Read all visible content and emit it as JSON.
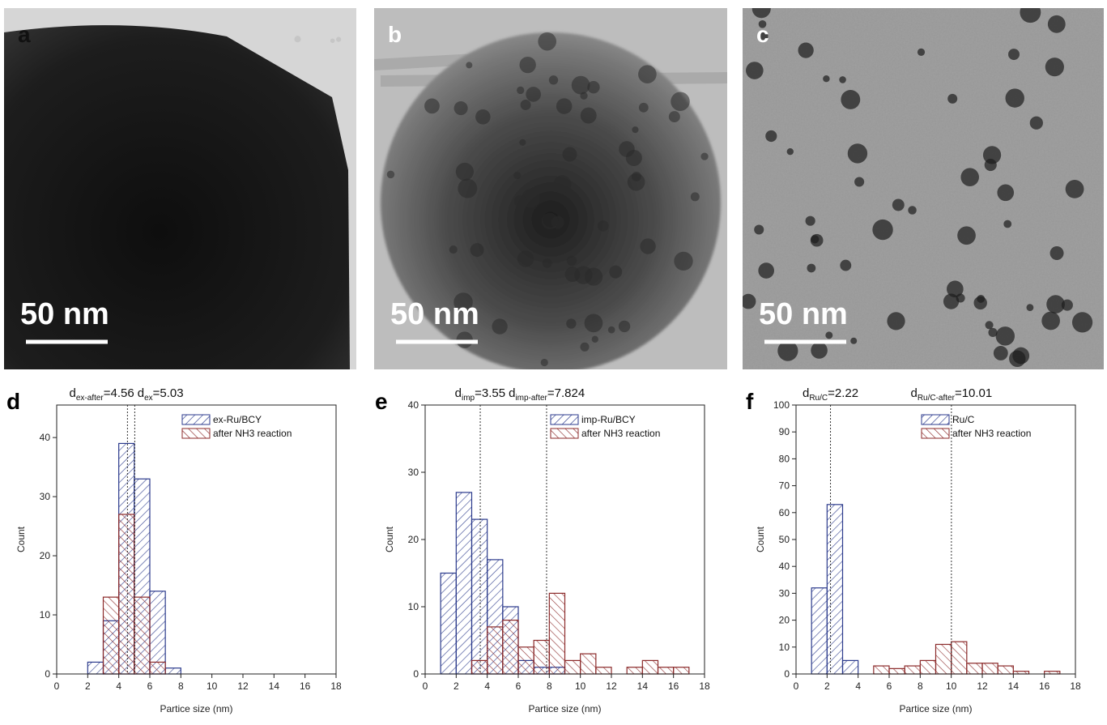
{
  "images": [
    {
      "label": "a",
      "scale_bar": "50 nm"
    },
    {
      "label": "b",
      "scale_bar": "50 nm"
    },
    {
      "label": "c",
      "scale_bar": "50 nm"
    }
  ],
  "chart_data": [
    {
      "type": "histogram",
      "label": "d",
      "xlabel": "Partice size (nm)",
      "ylabel": "Count",
      "bins": [
        2,
        3,
        4,
        5,
        6,
        7,
        8
      ],
      "series": [
        {
          "name": "ex-Ru/BCY",
          "color": "#2b3a8c",
          "values": [
            2,
            9,
            39,
            33,
            14,
            1
          ]
        },
        {
          "name": "after NH3 reaction",
          "color": "#8b2a2a",
          "values": [
            0,
            13,
            27,
            13,
            2,
            0
          ]
        }
      ],
      "annotations": [
        {
          "symbol": "d",
          "subscript": "ex-after",
          "label": "=4.56",
          "x": 4.56
        },
        {
          "symbol": "d",
          "subscript": "ex",
          "label": "=5.03",
          "x": 5.03
        }
      ],
      "xlim": [
        0,
        18
      ],
      "xticks": [
        0,
        2,
        4,
        6,
        8,
        10,
        12,
        14,
        16,
        18
      ],
      "ylim": [
        0,
        45.5
      ],
      "yticks": [
        0,
        10,
        20,
        30,
        40
      ],
      "legend": "upper right"
    },
    {
      "type": "histogram",
      "label": "e",
      "xlabel": "Partice size (nm)",
      "ylabel": "Count",
      "bins": [
        1,
        2,
        3,
        4,
        5,
        6,
        7,
        8,
        9,
        10,
        11,
        12,
        13,
        14,
        15,
        16,
        17
      ],
      "series": [
        {
          "name": "imp-Ru/BCY",
          "color": "#2b3a8c",
          "values": [
            15,
            27,
            23,
            17,
            10,
            2,
            1,
            1,
            0,
            0,
            0,
            0,
            0,
            0,
            0,
            0
          ]
        },
        {
          "name": "after NH3 reaction",
          "color": "#8b2a2a",
          "values": [
            0,
            0,
            2,
            7,
            8,
            4,
            5,
            12,
            2,
            3,
            1,
            0,
            1,
            2,
            1,
            1
          ]
        }
      ],
      "annotations": [
        {
          "symbol": "d",
          "subscript": "imp",
          "label": "=3.55",
          "x": 3.55
        },
        {
          "symbol": "d",
          "subscript": "imp-after",
          "label": "=7.824",
          "x": 7.824
        }
      ],
      "xlim": [
        0,
        18
      ],
      "xticks": [
        0,
        2,
        4,
        6,
        8,
        10,
        12,
        14,
        16,
        18
      ],
      "ylim": [
        0,
        40
      ],
      "yticks": [
        0,
        10,
        20,
        30,
        40
      ],
      "legend": "upper right"
    },
    {
      "type": "histogram",
      "label": "f",
      "xlabel": "Partice size (nm)",
      "ylabel": "Count",
      "bins": [
        1,
        2,
        3,
        4,
        5,
        6,
        7,
        8,
        9,
        10,
        11,
        12,
        13,
        14,
        15,
        16,
        17
      ],
      "series": [
        {
          "name": "Ru/C",
          "color": "#2b3a8c",
          "values": [
            32,
            63,
            5,
            0,
            0,
            0,
            0,
            0,
            0,
            0,
            0,
            0,
            0,
            0,
            0,
            0
          ]
        },
        {
          "name": "after NH3 reaction",
          "color": "#8b2a2a",
          "values": [
            0,
            0,
            0,
            0,
            3,
            2,
            3,
            5,
            11,
            12,
            4,
            4,
            3,
            1,
            0,
            1
          ]
        }
      ],
      "annotations": [
        {
          "symbol": "d",
          "subscript": "Ru/C",
          "label": "=2.22",
          "x": 2.22
        },
        {
          "symbol": "d",
          "subscript": "Ru/C-after",
          "label": "=10.01",
          "x": 10.01
        }
      ],
      "xlim": [
        0,
        18
      ],
      "xticks": [
        0,
        2,
        4,
        6,
        8,
        10,
        12,
        14,
        16,
        18
      ],
      "ylim": [
        0,
        100
      ],
      "yticks": [
        0,
        10,
        20,
        30,
        40,
        50,
        60,
        70,
        80,
        90,
        100
      ],
      "legend": "upper right"
    }
  ]
}
